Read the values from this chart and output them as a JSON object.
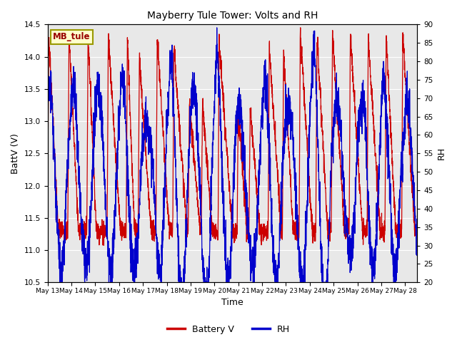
{
  "title": "Mayberry Tule Tower: Volts and RH",
  "xlabel": "Time",
  "ylabel_left": "BattV (V)",
  "ylabel_right": "RH",
  "xlim_days": [
    0,
    15.5
  ],
  "ylim_left": [
    10.5,
    14.5
  ],
  "ylim_right": [
    20,
    90
  ],
  "yticks_left": [
    10.5,
    11.0,
    11.5,
    12.0,
    12.5,
    13.0,
    13.5,
    14.0,
    14.5
  ],
  "yticks_right": [
    20,
    25,
    30,
    35,
    40,
    45,
    50,
    55,
    60,
    65,
    70,
    75,
    80,
    85,
    90
  ],
  "xtick_labels": [
    "May 13",
    "May 14",
    "May 15",
    "May 16",
    "May 17",
    "May 18",
    "May 19",
    "May 20",
    "May 21",
    "May 22",
    "May 23",
    "May 24",
    "May 25",
    "May 26",
    "May 27",
    "May 28"
  ],
  "xtick_positions": [
    0,
    1,
    2,
    3,
    4,
    5,
    6,
    7,
    8,
    9,
    10,
    11,
    12,
    13,
    14,
    15
  ],
  "color_battery": "#cc0000",
  "color_rh": "#0000cc",
  "legend_label_battery": "Battery V",
  "legend_label_rh": "RH",
  "station_label": "MB_tule",
  "station_label_color": "#990000",
  "station_box_facecolor": "#ffffcc",
  "station_box_edgecolor": "#999900",
  "background_color": "#e8e8e8",
  "grid_color": "#ffffff",
  "fig_background": "#ffffff"
}
